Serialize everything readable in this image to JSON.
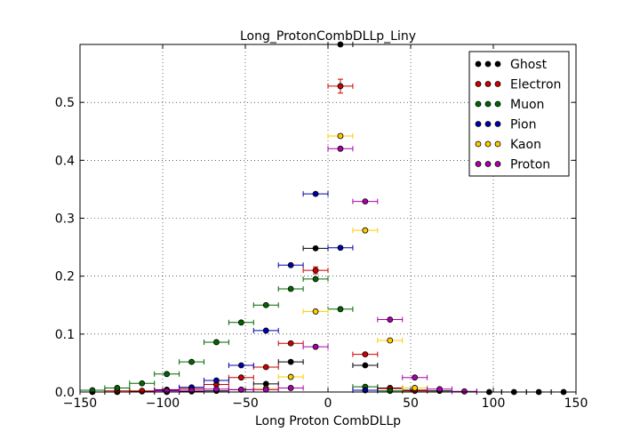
{
  "chart_data": {
    "type": "scatter",
    "title": "Long_ProtonCombDLLp_Liny",
    "xlabel": "Long Proton CombDLLp",
    "ylabel": "",
    "xlim": [
      -150,
      150
    ],
    "ylim": [
      0,
      0.6
    ],
    "xticks": [
      "−150",
      "−100",
      "−50",
      "0",
      "50",
      "100",
      "150"
    ],
    "yticks": [
      "0.0",
      "0.1",
      "0.2",
      "0.3",
      "0.4",
      "0.5"
    ],
    "xtick_values": [
      -150,
      -100,
      -50,
      0,
      50,
      100,
      150
    ],
    "ytick_values": [
      0.0,
      0.1,
      0.2,
      0.3,
      0.4,
      0.5
    ],
    "grid": true,
    "legend_position": "top-right",
    "bin_half_width": 7.5,
    "series": [
      {
        "name": "Ghost",
        "color": "#000000",
        "x": [
          -142.5,
          -127.5,
          -112.5,
          -97.5,
          -82.5,
          -67.5,
          -52.5,
          -37.5,
          -22.5,
          -7.5,
          7.5,
          22.5,
          37.5,
          52.5,
          67.5,
          82.5,
          97.5,
          112.5,
          127.5,
          142.5
        ],
        "y": [
          0.0,
          0.0,
          0.001,
          0.0,
          0.001,
          0.002,
          0.004,
          0.014,
          0.052,
          0.248,
          0.6,
          0.046,
          0.007,
          0.003,
          0.002,
          0.001,
          0.0,
          0.0,
          0.0,
          0.0
        ],
        "yerr": [
          0,
          0,
          0,
          0,
          0,
          0,
          0,
          0,
          0,
          0,
          0,
          0,
          0,
          0,
          0,
          0,
          0,
          0,
          0,
          0
        ]
      },
      {
        "name": "Electron",
        "color": "#cc0000",
        "x": [
          -127.5,
          -112.5,
          -97.5,
          -82.5,
          -67.5,
          -52.5,
          -37.5,
          -22.5,
          -7.5,
          7.5,
          22.5,
          37.5,
          52.5
        ],
        "y": [
          0.002,
          0.002,
          0.004,
          0.006,
          0.013,
          0.025,
          0.043,
          0.084,
          0.21,
          0.528,
          0.065,
          0.006,
          0.002
        ],
        "yerr": [
          0,
          0,
          0,
          0,
          0,
          0,
          0,
          0,
          0.006,
          0.012,
          0,
          0,
          0
        ]
      },
      {
        "name": "Muon",
        "color": "#006600",
        "x": [
          -142.5,
          -127.5,
          -112.5,
          -97.5,
          -82.5,
          -67.5,
          -52.5,
          -37.5,
          -22.5,
          -7.5,
          7.5,
          22.5,
          37.5
        ],
        "y": [
          0.003,
          0.007,
          0.015,
          0.031,
          0.052,
          0.086,
          0.12,
          0.15,
          0.178,
          0.195,
          0.143,
          0.009,
          0.002
        ],
        "yerr": [
          0,
          0,
          0,
          0,
          0,
          0,
          0,
          0,
          0,
          0,
          0,
          0,
          0
        ]
      },
      {
        "name": "Pion",
        "color": "#0000aa",
        "x": [
          -97.5,
          -82.5,
          -67.5,
          -52.5,
          -37.5,
          -22.5,
          -7.5,
          7.5,
          22.5
        ],
        "y": [
          0.003,
          0.008,
          0.02,
          0.046,
          0.106,
          0.219,
          0.342,
          0.249,
          0.003
        ],
        "yerr": [
          0,
          0,
          0,
          0,
          0,
          0,
          0,
          0,
          0
        ]
      },
      {
        "name": "Kaon",
        "color": "#ffcc00",
        "x": [
          -37.5,
          -22.5,
          -7.5,
          7.5,
          22.5,
          37.5,
          52.5
        ],
        "y": [
          0.006,
          0.026,
          0.139,
          0.442,
          0.279,
          0.089,
          0.007
        ],
        "yerr": [
          0,
          0,
          0,
          0,
          0,
          0,
          0
        ]
      },
      {
        "name": "Proton",
        "color": "#aa00aa",
        "x": [
          -97.5,
          -82.5,
          -67.5,
          -52.5,
          -37.5,
          -22.5,
          -7.5,
          7.5,
          22.5,
          37.5,
          52.5,
          67.5,
          82.5
        ],
        "y": [
          0.002,
          0.003,
          0.005,
          0.004,
          0.004,
          0.007,
          0.078,
          0.42,
          0.329,
          0.125,
          0.025,
          0.005,
          0.001
        ],
        "yerr": [
          0,
          0,
          0,
          0,
          0,
          0,
          0,
          0,
          0,
          0,
          0,
          0,
          0
        ]
      }
    ]
  }
}
